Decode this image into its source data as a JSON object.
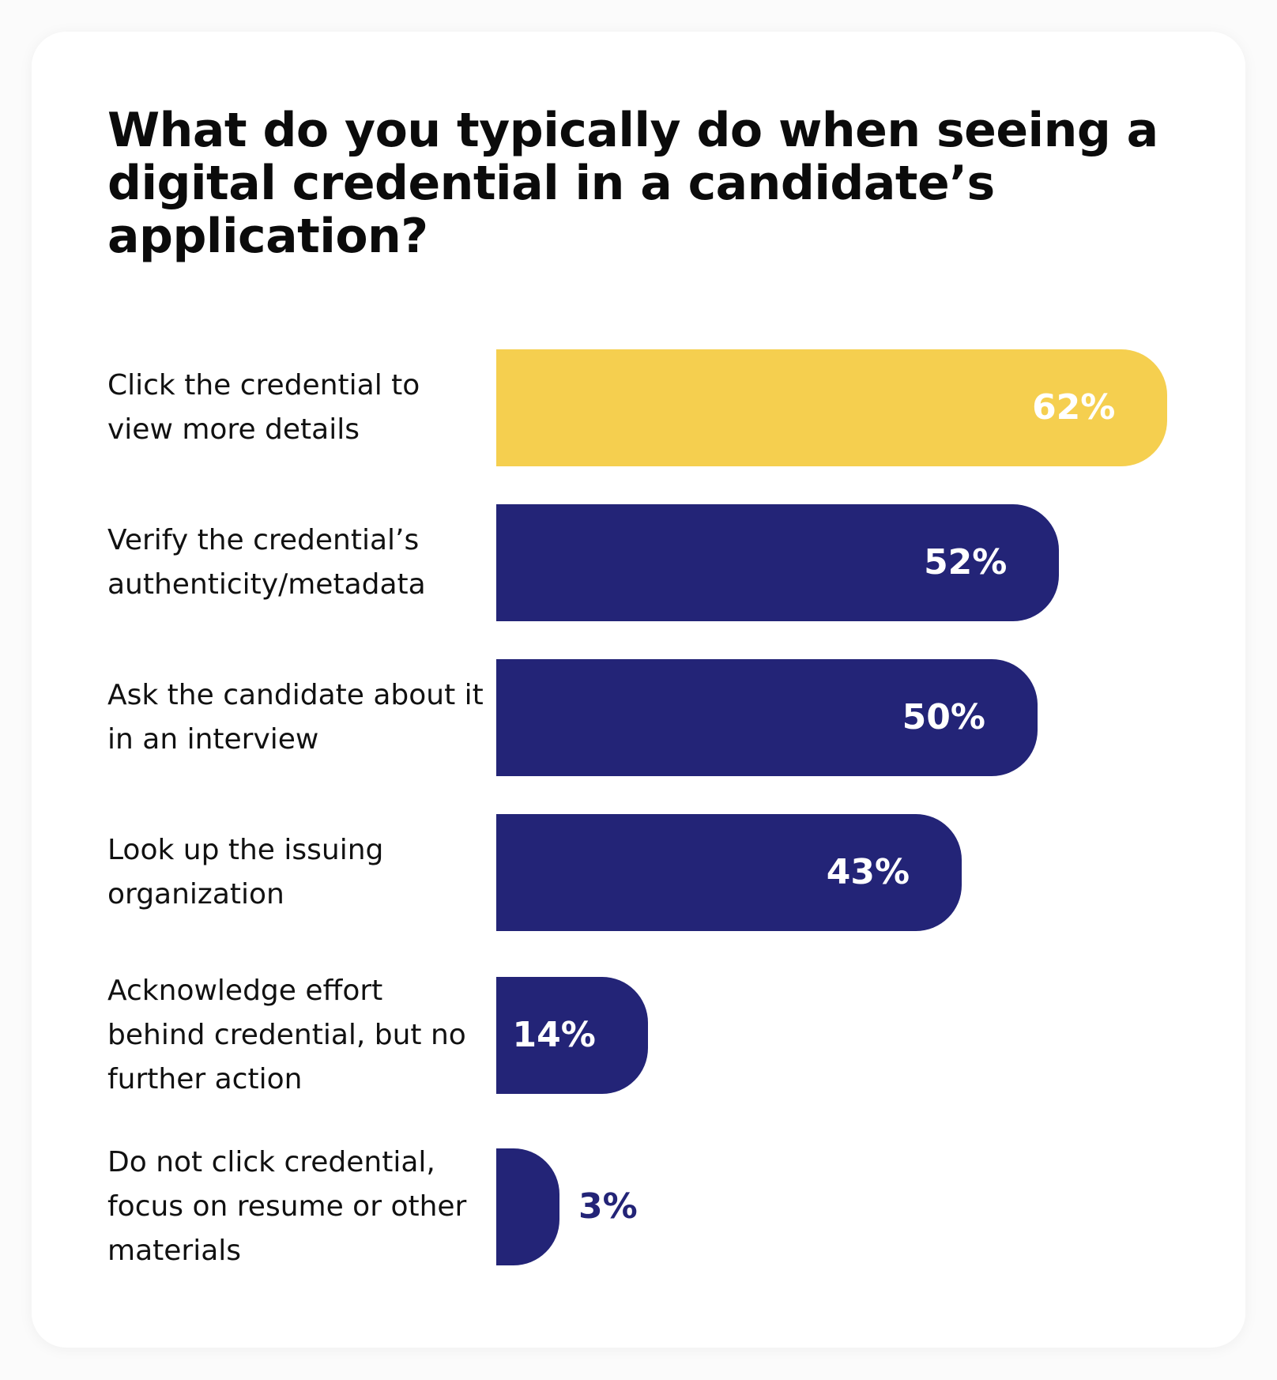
{
  "chart_data": {
    "type": "bar",
    "orientation": "horizontal",
    "title": "What do you typically do when seeing a digital credential in a candidate’s application?",
    "categories": [
      "Click the credential to view more details",
      "Verify the credential’s authenticity/metadata",
      "Ask the candidate about it in an interview",
      "Look up the issuing organization",
      "Acknowledge effort behind credential, but no further action",
      "Do not click credential, focus on resume or other materials"
    ],
    "values": [
      62,
      52,
      50,
      43,
      14,
      3
    ],
    "value_labels": [
      "62%",
      "52%",
      "50%",
      "43%",
      "14%",
      "3%"
    ],
    "highlight_index": 0,
    "colors": {
      "highlight": "#F5CF4F",
      "default": "#232477",
      "label_inside": "#FFFFFF",
      "label_outside": "#232477"
    },
    "grid": false,
    "legend": "none"
  }
}
